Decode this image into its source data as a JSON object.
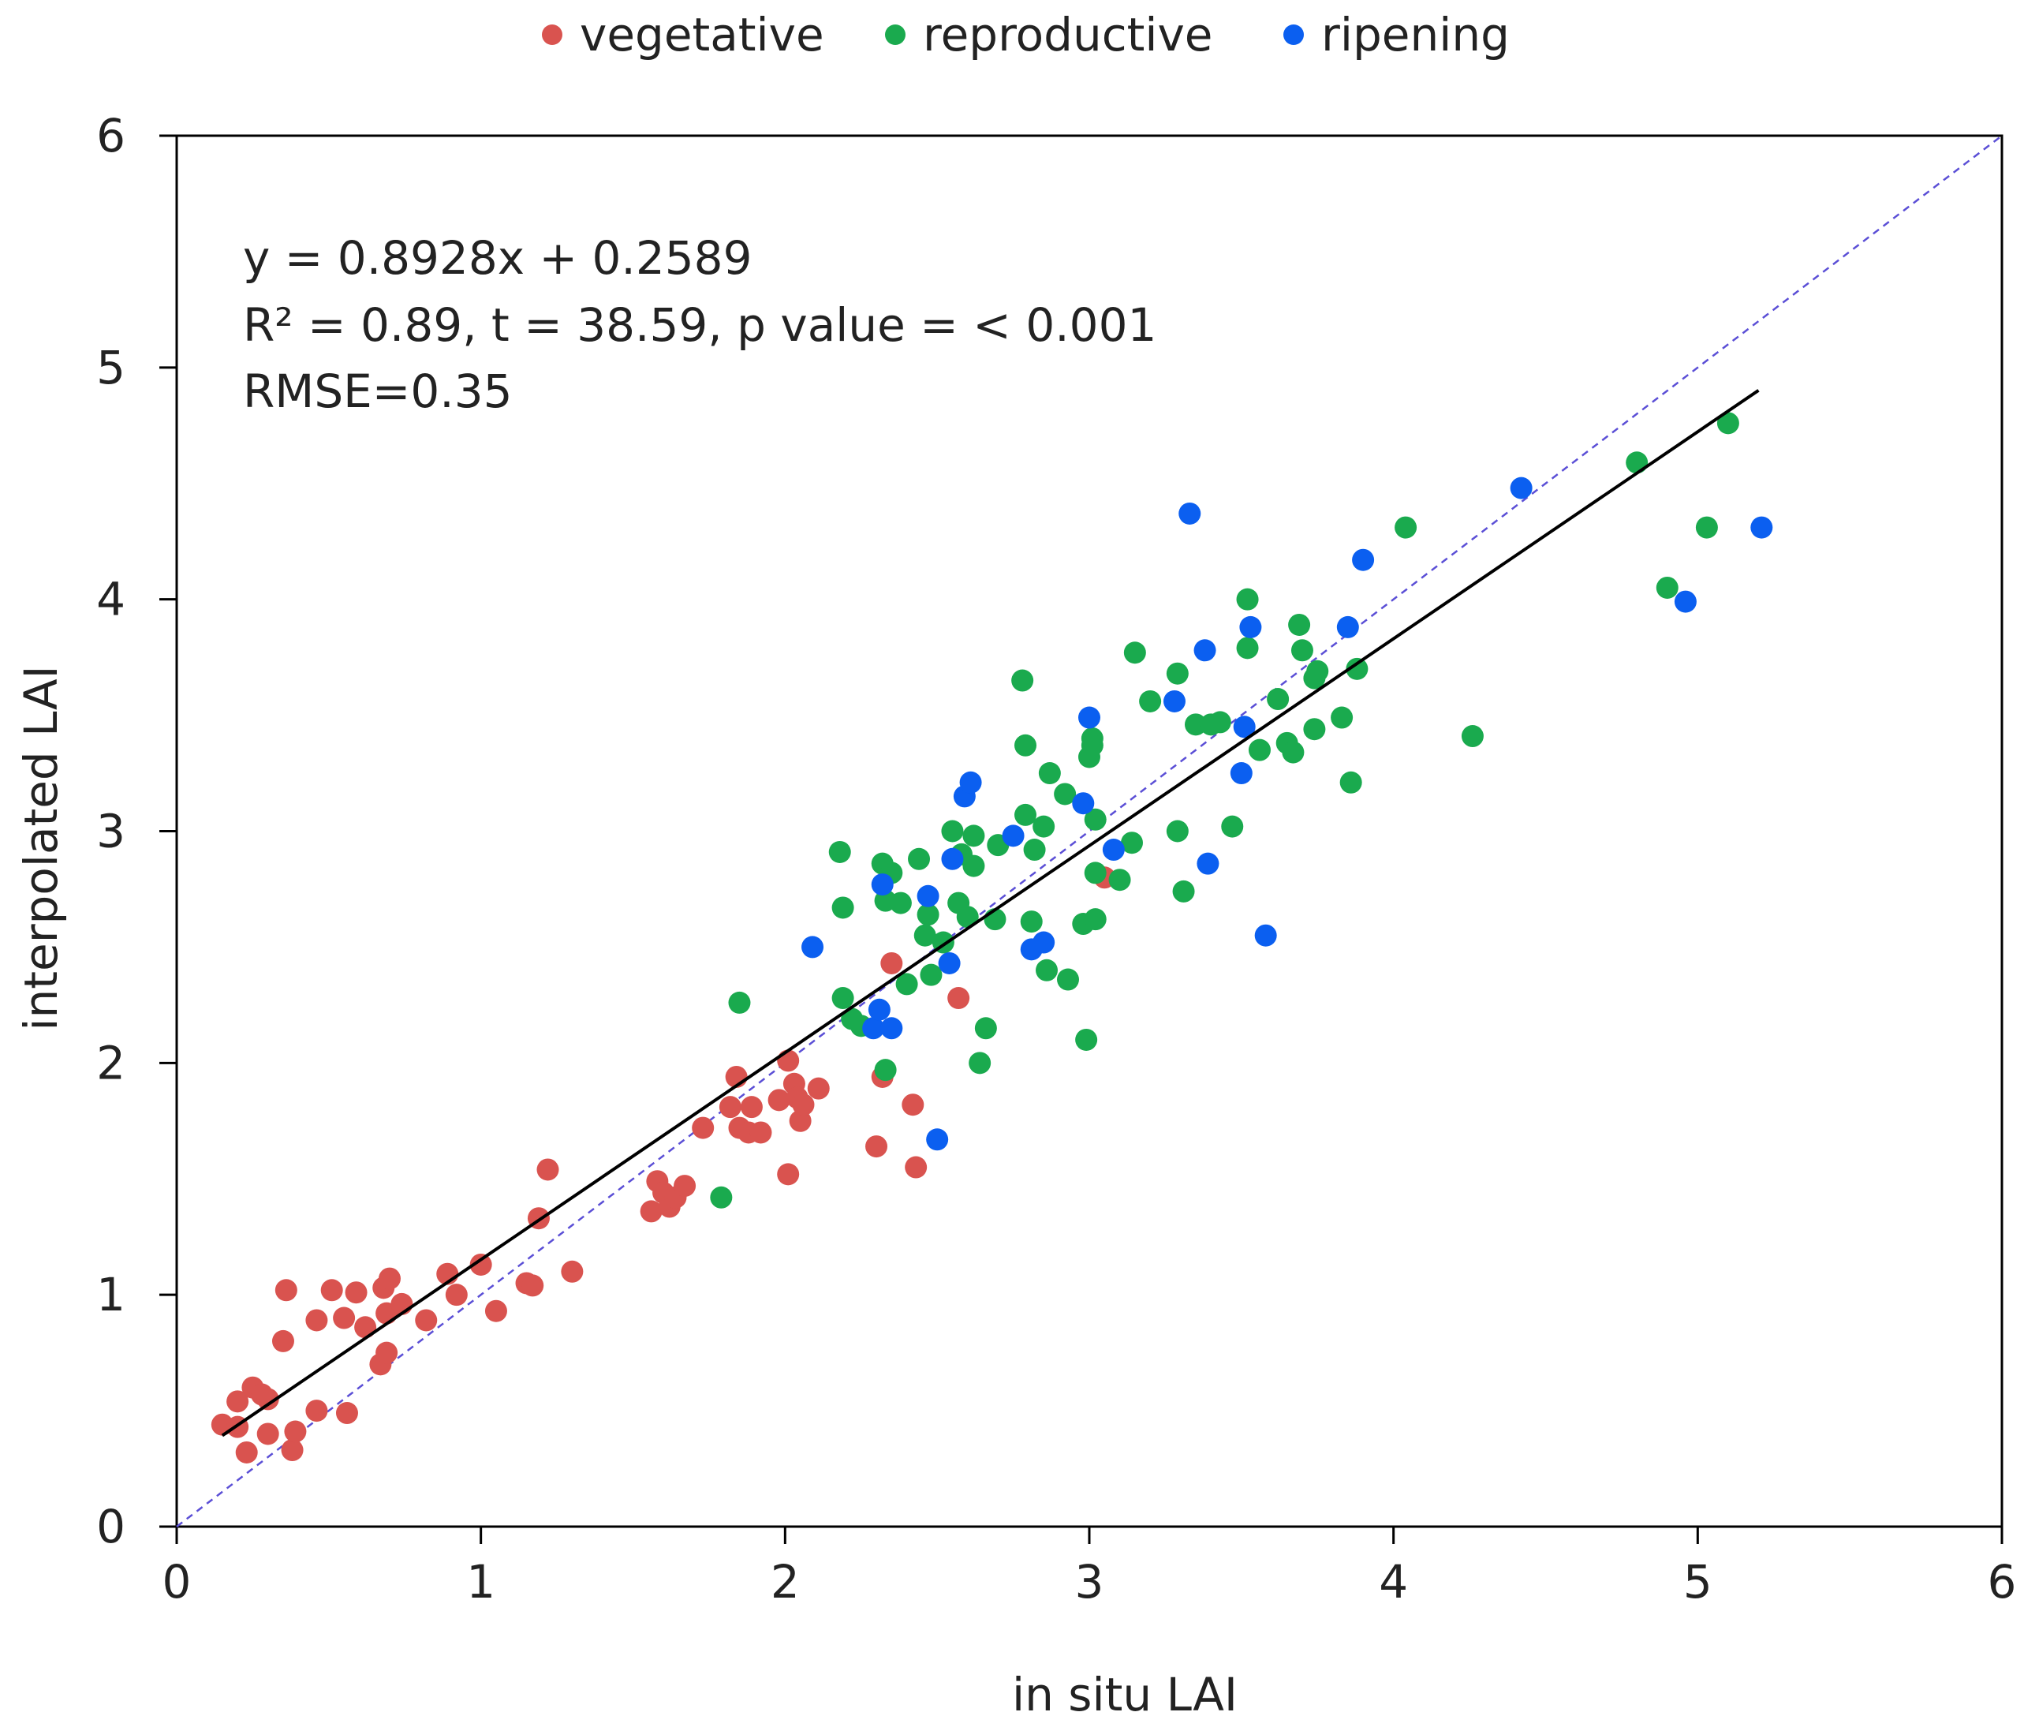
{
  "chart_data": {
    "type": "scatter",
    "title": "",
    "xlabel": "in situ LAI",
    "ylabel": "interpolated LAI",
    "xlim": [
      0,
      6
    ],
    "ylim": [
      0,
      6
    ],
    "x_ticks": [
      "0",
      "1",
      "2",
      "3",
      "4",
      "5",
      "6"
    ],
    "y_ticks": [
      "0",
      "1",
      "2",
      "3",
      "4",
      "5",
      "6"
    ],
    "grid": false,
    "legend_position": "top-center",
    "colors": {
      "vegetative": "#d9534f",
      "reproductive": "#1aaa4e",
      "ripening": "#0b5ff0",
      "fit": "#000000",
      "identity": "#5b4fd6"
    },
    "annotations": [
      "y = 0.8928x + 0.2589",
      "R² = 0.89, t = 38.59, p value = < 0.001",
      "RMSE=0.35"
    ],
    "fit_line": {
      "slope": 0.8928,
      "intercept": 0.2589,
      "x_range": [
        0.15,
        5.2
      ]
    },
    "identity_line": {
      "x_range": [
        0,
        6
      ]
    },
    "series": [
      {
        "name": "vegetative",
        "points": [
          [
            0.15,
            0.44
          ],
          [
            0.2,
            0.43
          ],
          [
            0.2,
            0.54
          ],
          [
            0.23,
            0.32
          ],
          [
            0.25,
            0.6
          ],
          [
            0.28,
            0.57
          ],
          [
            0.3,
            0.55
          ],
          [
            0.3,
            0.4
          ],
          [
            0.35,
            0.8
          ],
          [
            0.36,
            1.02
          ],
          [
            0.38,
            0.33
          ],
          [
            0.39,
            0.41
          ],
          [
            0.46,
            0.5
          ],
          [
            0.46,
            0.89
          ],
          [
            0.51,
            1.02
          ],
          [
            0.55,
            0.9
          ],
          [
            0.56,
            0.49
          ],
          [
            0.59,
            1.01
          ],
          [
            0.62,
            0.86
          ],
          [
            0.67,
            0.7
          ],
          [
            0.68,
            1.03
          ],
          [
            0.69,
            0.75
          ],
          [
            0.69,
            0.92
          ],
          [
            0.7,
            1.07
          ],
          [
            0.74,
            0.96
          ],
          [
            0.82,
            0.89
          ],
          [
            0.89,
            1.09
          ],
          [
            0.92,
            1.0
          ],
          [
            1.0,
            1.13
          ],
          [
            1.05,
            0.93
          ],
          [
            1.15,
            1.05
          ],
          [
            1.17,
            1.04
          ],
          [
            1.19,
            1.33
          ],
          [
            1.22,
            1.54
          ],
          [
            1.3,
            1.1
          ],
          [
            1.56,
            1.36
          ],
          [
            1.58,
            1.49
          ],
          [
            1.6,
            1.44
          ],
          [
            1.62,
            1.38
          ],
          [
            1.64,
            1.42
          ],
          [
            1.67,
            1.47
          ],
          [
            1.73,
            1.72
          ],
          [
            1.82,
            1.81
          ],
          [
            1.84,
            1.94
          ],
          [
            1.85,
            1.72
          ],
          [
            1.88,
            1.7
          ],
          [
            1.89,
            1.81
          ],
          [
            1.92,
            1.7
          ],
          [
            1.98,
            1.84
          ],
          [
            2.01,
            2.01
          ],
          [
            2.01,
            1.52
          ],
          [
            2.03,
            1.91
          ],
          [
            2.04,
            1.85
          ],
          [
            2.05,
            1.75
          ],
          [
            2.06,
            1.82
          ],
          [
            2.11,
            1.89
          ],
          [
            2.3,
            1.64
          ],
          [
            2.32,
            1.94
          ],
          [
            2.35,
            2.43
          ],
          [
            2.42,
            1.82
          ],
          [
            2.43,
            1.55
          ],
          [
            2.57,
            2.28
          ],
          [
            3.05,
            2.8
          ]
        ]
      },
      {
        "name": "reproductive",
        "points": [
          [
            1.79,
            1.42
          ],
          [
            1.85,
            2.26
          ],
          [
            2.18,
            2.91
          ],
          [
            2.19,
            2.67
          ],
          [
            2.19,
            2.28
          ],
          [
            2.22,
            2.19
          ],
          [
            2.25,
            2.16
          ],
          [
            2.32,
            2.86
          ],
          [
            2.33,
            2.7
          ],
          [
            2.33,
            1.97
          ],
          [
            2.35,
            2.82
          ],
          [
            2.38,
            2.69
          ],
          [
            2.4,
            2.34
          ],
          [
            2.44,
            2.88
          ],
          [
            2.46,
            2.55
          ],
          [
            2.47,
            2.64
          ],
          [
            2.48,
            2.38
          ],
          [
            2.52,
            2.52
          ],
          [
            2.55,
            3.0
          ],
          [
            2.57,
            2.69
          ],
          [
            2.58,
            2.9
          ],
          [
            2.6,
            2.63
          ],
          [
            2.62,
            2.98
          ],
          [
            2.62,
            2.85
          ],
          [
            2.64,
            2.0
          ],
          [
            2.66,
            2.15
          ],
          [
            2.69,
            2.62
          ],
          [
            2.7,
            2.94
          ],
          [
            2.78,
            3.65
          ],
          [
            2.79,
            3.37
          ],
          [
            2.79,
            3.07
          ],
          [
            2.81,
            2.61
          ],
          [
            2.82,
            2.92
          ],
          [
            2.85,
            3.02
          ],
          [
            2.86,
            2.4
          ],
          [
            2.87,
            3.25
          ],
          [
            2.92,
            3.16
          ],
          [
            2.93,
            2.36
          ],
          [
            2.98,
            2.6
          ],
          [
            2.99,
            2.1
          ],
          [
            3.0,
            3.32
          ],
          [
            3.01,
            3.4
          ],
          [
            3.01,
            3.37
          ],
          [
            3.02,
            2.82
          ],
          [
            3.02,
            2.62
          ],
          [
            3.02,
            3.05
          ],
          [
            3.1,
            2.79
          ],
          [
            3.14,
            2.95
          ],
          [
            3.15,
            3.77
          ],
          [
            3.2,
            3.56
          ],
          [
            3.29,
            3.68
          ],
          [
            3.29,
            3.0
          ],
          [
            3.31,
            2.74
          ],
          [
            3.35,
            3.46
          ],
          [
            3.4,
            3.46
          ],
          [
            3.43,
            3.47
          ],
          [
            3.47,
            3.02
          ],
          [
            3.52,
            4.0
          ],
          [
            3.52,
            3.79
          ],
          [
            3.56,
            3.35
          ],
          [
            3.62,
            3.57
          ],
          [
            3.65,
            3.38
          ],
          [
            3.67,
            3.34
          ],
          [
            3.69,
            3.89
          ],
          [
            3.7,
            3.78
          ],
          [
            3.74,
            3.44
          ],
          [
            3.74,
            3.66
          ],
          [
            3.75,
            3.69
          ],
          [
            3.83,
            3.49
          ],
          [
            3.86,
            3.21
          ],
          [
            3.88,
            3.7
          ],
          [
            4.04,
            4.31
          ],
          [
            4.26,
            3.41
          ],
          [
            4.8,
            4.59
          ],
          [
            4.9,
            4.05
          ],
          [
            5.03,
            4.31
          ],
          [
            5.1,
            4.76
          ]
        ]
      },
      {
        "name": "ripening",
        "points": [
          [
            2.09,
            2.5
          ],
          [
            2.29,
            2.15
          ],
          [
            2.31,
            2.23
          ],
          [
            2.32,
            2.77
          ],
          [
            2.35,
            2.15
          ],
          [
            2.47,
            2.72
          ],
          [
            2.5,
            1.67
          ],
          [
            2.54,
            2.43
          ],
          [
            2.55,
            2.88
          ],
          [
            2.59,
            3.15
          ],
          [
            2.61,
            3.21
          ],
          [
            2.75,
            2.98
          ],
          [
            2.81,
            2.49
          ],
          [
            2.85,
            2.52
          ],
          [
            2.98,
            3.12
          ],
          [
            3.0,
            3.49
          ],
          [
            3.08,
            2.92
          ],
          [
            3.28,
            3.56
          ],
          [
            3.33,
            4.37
          ],
          [
            3.38,
            3.78
          ],
          [
            3.39,
            2.86
          ],
          [
            3.5,
            3.25
          ],
          [
            3.51,
            3.45
          ],
          [
            3.53,
            3.88
          ],
          [
            3.58,
            2.55
          ],
          [
            3.85,
            3.88
          ],
          [
            3.9,
            4.17
          ],
          [
            4.42,
            4.48
          ],
          [
            4.96,
            3.99
          ],
          [
            5.21,
            4.31
          ]
        ]
      }
    ]
  }
}
